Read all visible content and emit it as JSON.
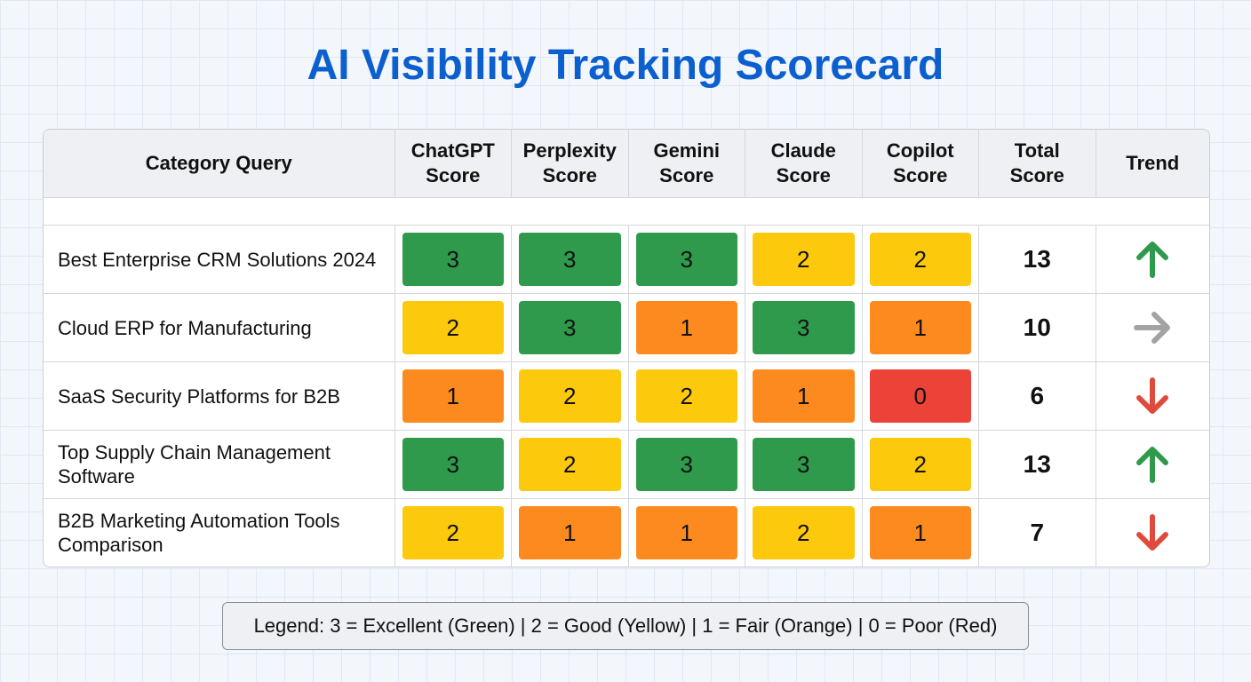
{
  "header": {
    "title": "AI Visibility Tracking Scorecard"
  },
  "table": {
    "headers": [
      "Category Query",
      "ChatGPT Score",
      "Perplexity Score",
      "Gemini Score",
      "Claude Score",
      "Copilot Score",
      "Total Score",
      "Trend"
    ],
    "score_colors": {
      "3": "#2f9a4b",
      "2": "#fdc90c",
      "1": "#fd8a1e",
      "0": "#ec4338"
    },
    "trend_colors": {
      "up": "#2f9a4b",
      "flat": "#a3a3a3",
      "down": "#e04a3c"
    },
    "rows": [
      {
        "query": "Best Enterprise CRM Solutions 2024",
        "scores": [
          3,
          3,
          3,
          2,
          2
        ],
        "total": 13,
        "trend": "up"
      },
      {
        "query": "Cloud ERP for Manufacturing",
        "scores": [
          2,
          3,
          1,
          3,
          1
        ],
        "total": 10,
        "trend": "flat"
      },
      {
        "query": "SaaS Security Platforms for B2B",
        "scores": [
          1,
          2,
          2,
          1,
          0
        ],
        "total": 6,
        "trend": "down"
      },
      {
        "query": "Top Supply Chain Management Software",
        "scores": [
          3,
          2,
          3,
          3,
          2
        ],
        "total": 13,
        "trend": "up"
      },
      {
        "query": "B2B Marketing Automation Tools Comparison",
        "scores": [
          2,
          1,
          1,
          2,
          1
        ],
        "total": 7,
        "trend": "down"
      }
    ]
  },
  "legend": {
    "text": "Legend: 3 = Excellent (Green) | 2 = Good (Yellow) | 1 = Fair (Orange) | 0 = Poor (Red)"
  }
}
